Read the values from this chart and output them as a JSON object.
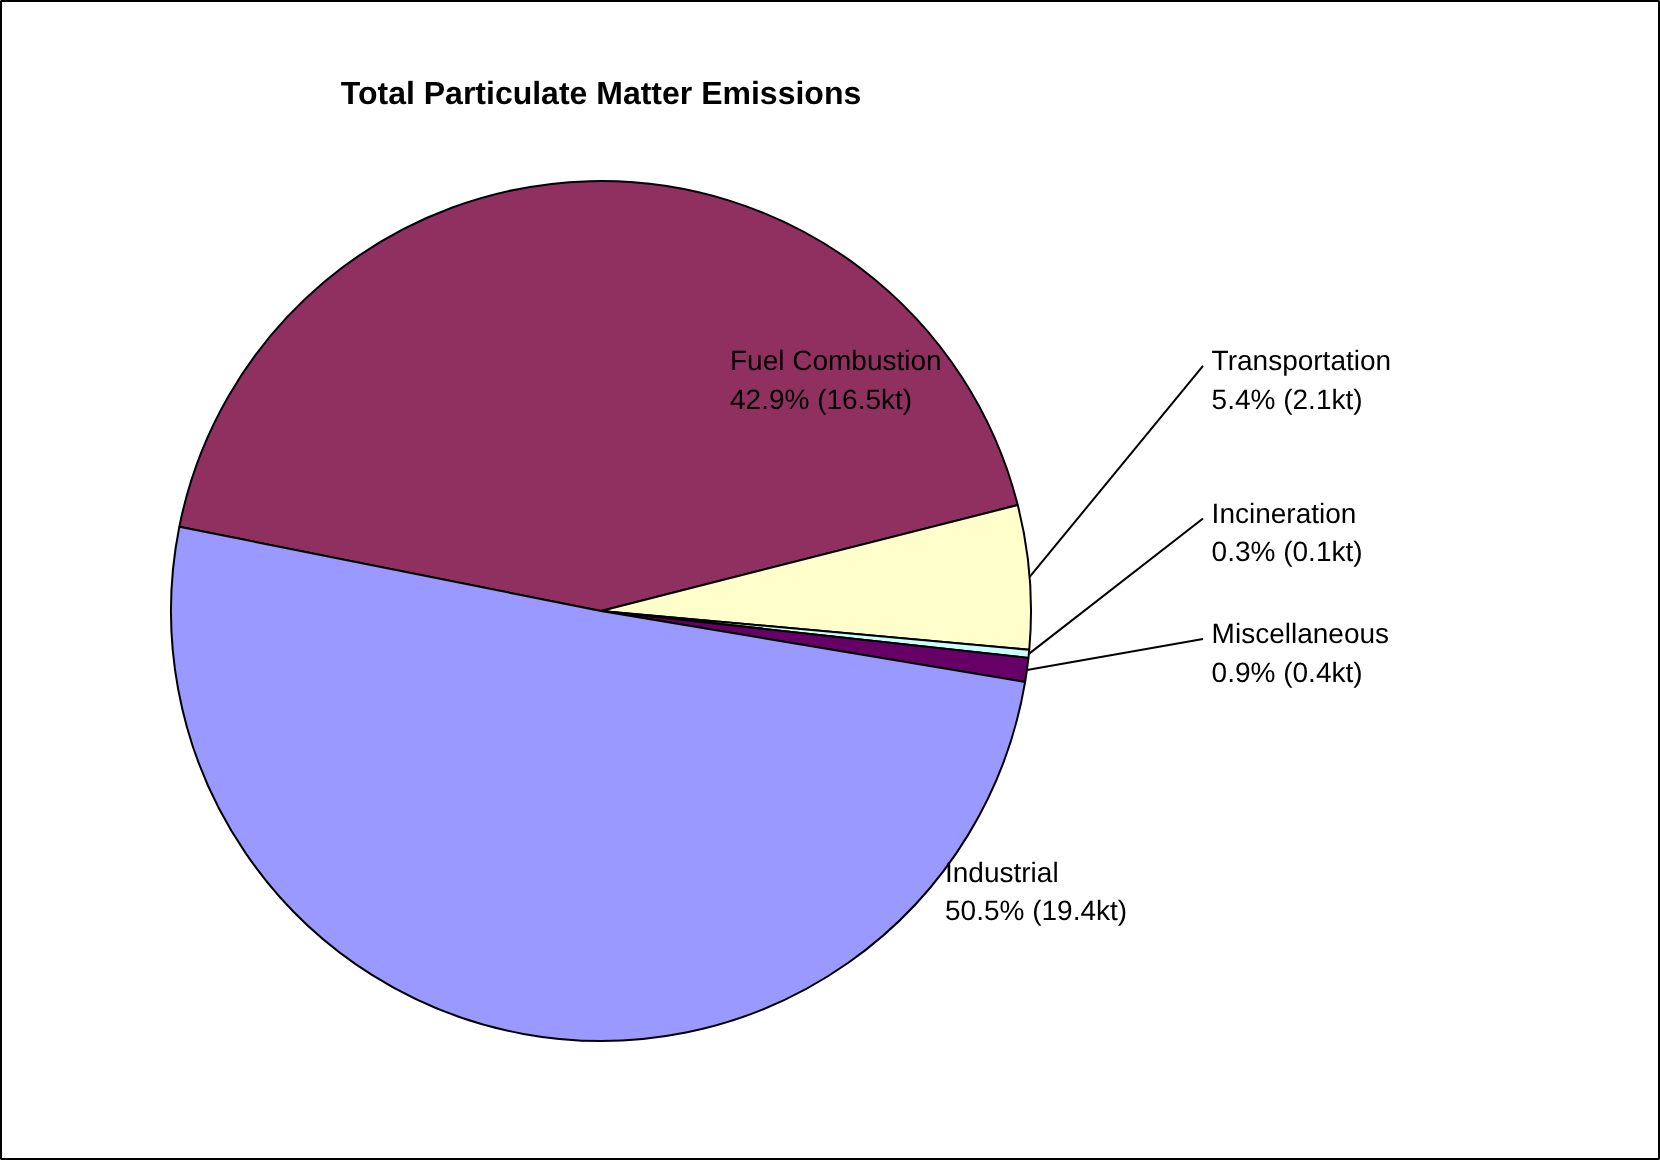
{
  "chart_data": {
    "type": "pie",
    "title": "Total Particulate Matter Emissions",
    "categories": [
      "Fuel Combustion",
      "Transportation",
      "Incineration",
      "Miscellaneous",
      "Industrial"
    ],
    "values": [
      42.9,
      5.4,
      0.3,
      0.9,
      50.5
    ],
    "value_labels": [
      "42.9% (16.5kt)",
      "5.4% (2.1kt)",
      "0.3% (0.1kt)",
      "0.9% (0.4kt)",
      "50.5% (19.4kt)"
    ],
    "colors": [
      "#8f3060",
      "#ffffcc",
      "#ccffff",
      "#660066",
      "#9999ff"
    ],
    "legend": false
  }
}
